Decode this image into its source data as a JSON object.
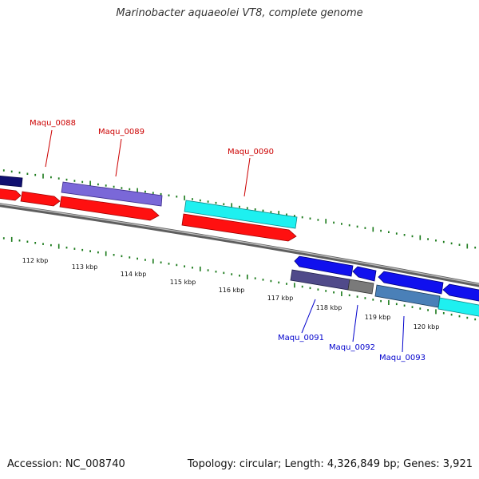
{
  "title": "Marinobacter aquaeolei VT8, complete genome",
  "footer": {
    "accession": "Accession: NC_008740",
    "summary": "Topology: circular; Length: 4,326,849 bp; Genes: 3,921"
  },
  "ruler": {
    "labels": [
      "112 kbp",
      "113 kbp",
      "114 kbp",
      "115 kbp",
      "116 kbp",
      "117 kbp",
      "118 kbp",
      "119 kbp",
      "120 kbp"
    ]
  },
  "genes": {
    "top": [
      "Maqu_0088",
      "Maqu_0089",
      "Maqu_0090"
    ],
    "bottom": [
      "Maqu_0091",
      "Maqu_0092",
      "Maqu_0093"
    ]
  },
  "colors": {
    "label_top": "#cc0000",
    "label_bottom": "#0000cc",
    "tick": "#1a7a1a",
    "backbone": "#888888",
    "red": "#ff0000",
    "cyan": "#00ffff",
    "blue": "#0000ff",
    "navy": "#000080",
    "purple": "#6a5acd",
    "gray": "#777777",
    "steel": "#4682b4"
  }
}
